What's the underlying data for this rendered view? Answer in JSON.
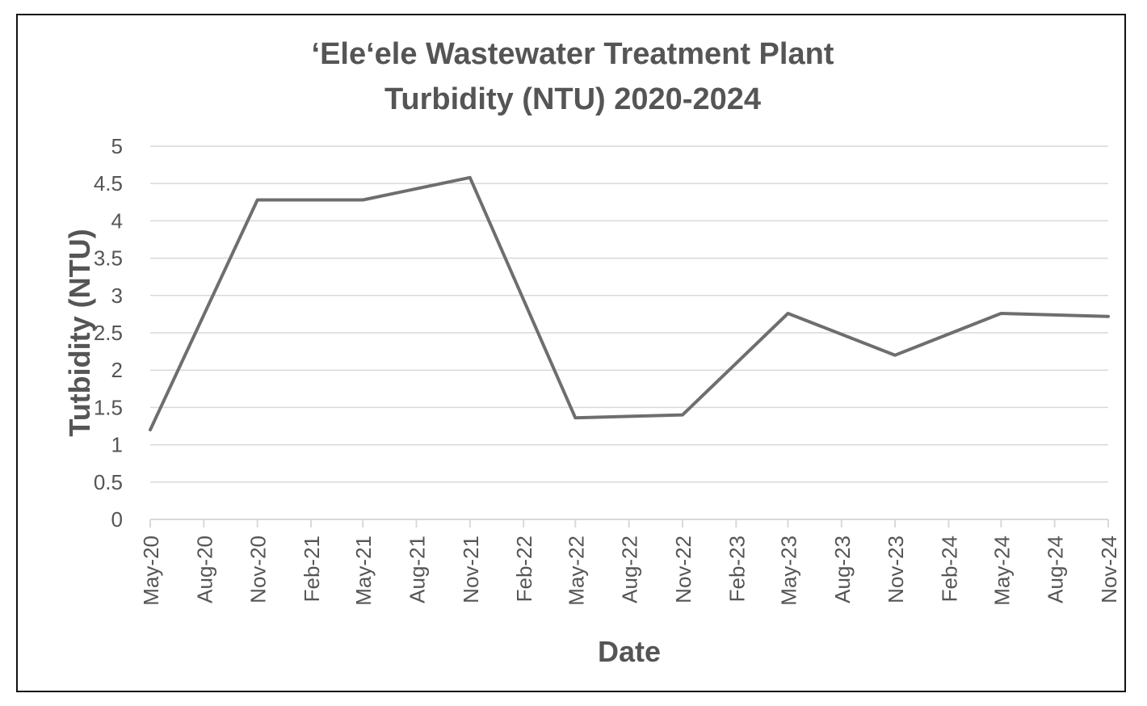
{
  "chart_data": {
    "type": "line",
    "title": [
      "‘Ele‘ele Wastewater Treatment Plant",
      "Turbidity (NTU) 2020-2024"
    ],
    "xlabel": "Date",
    "ylabel": "Tutbidity (NTU)",
    "ylim": [
      0,
      5
    ],
    "yticks": [
      "0",
      "0.5",
      "1",
      "1.5",
      "2",
      "2.5",
      "3",
      "3.5",
      "4",
      "4.5",
      "5"
    ],
    "xlim": [
      "2020-05",
      "2024-11"
    ],
    "xticks": [
      "May-20",
      "Aug-20",
      "Nov-20",
      "Feb-21",
      "May-21",
      "Aug-21",
      "Nov-21",
      "Feb-22",
      "May-22",
      "Aug-22",
      "Nov-22",
      "Feb-23",
      "May-23",
      "Aug-23",
      "Nov-23",
      "Feb-24",
      "May-24",
      "Aug-24",
      "Nov-24"
    ],
    "grid": true,
    "line_color": "#6e6e6e",
    "grid_color": "#d9d9d9",
    "text_color": "#555555",
    "series": [
      {
        "x": [
          "2020-05-01",
          "2020-11-01",
          "2021-05-01",
          "2021-11-01",
          "2022-05-01",
          "2022-11-01",
          "2023-05-01",
          "2023-11-01",
          "2024-05-01",
          "2024-11-01"
        ],
        "values": [
          1.2,
          4.28,
          4.28,
          4.58,
          1.36,
          1.4,
          2.76,
          2.2,
          2.76,
          2.72
        ]
      }
    ]
  }
}
